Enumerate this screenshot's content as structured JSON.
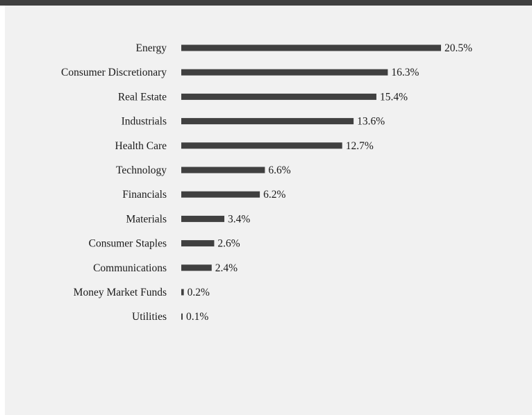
{
  "chart_data": {
    "type": "bar",
    "orientation": "horizontal",
    "categories": [
      "Energy",
      "Consumer Discretionary",
      "Real Estate",
      "Industrials",
      "Health Care",
      "Technology",
      "Financials",
      "Materials",
      "Consumer Staples",
      "Communications",
      "Money Market Funds",
      "Utilities"
    ],
    "values": [
      20.5,
      16.3,
      15.4,
      13.6,
      12.7,
      6.6,
      6.2,
      3.4,
      2.6,
      2.4,
      0.2,
      0.1
    ],
    "value_labels": [
      "20.5%",
      "16.3%",
      "15.4%",
      "13.6%",
      "12.7%",
      "6.6%",
      "6.2%",
      "3.4%",
      "2.6%",
      "2.4%",
      "0.2%",
      "0.1%"
    ],
    "xlim": [
      0,
      20.5
    ],
    "grid": false,
    "legend": "none",
    "bar_color": "#404040"
  }
}
